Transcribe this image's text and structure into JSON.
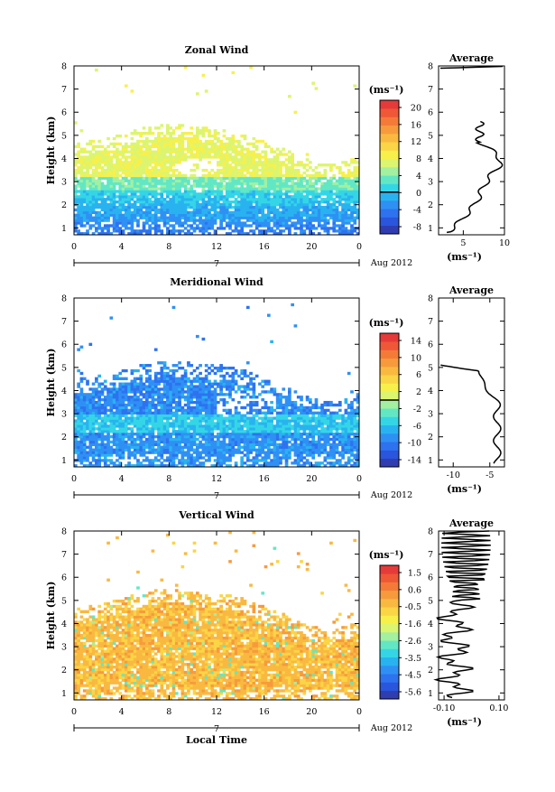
{
  "chart_data": [
    {
      "type": "heatmap",
      "title": "Zonal Wind",
      "ylabel": "Height (km)",
      "xlabel": "",
      "x_ticks": [
        "0",
        "4",
        "8",
        "12",
        "16",
        "20",
        "0"
      ],
      "y_ticks": [
        "1",
        "2",
        "3",
        "4",
        "5",
        "6",
        "7",
        "8"
      ],
      "xlim": [
        0,
        24
      ],
      "ylim": [
        0.7,
        8
      ],
      "day_label": "7",
      "date_label": "Aug 2012",
      "colorbar": {
        "unit": "(ms⁻¹)",
        "ticks": [
          "20",
          "16",
          "12",
          "8",
          "4",
          "0",
          "-4",
          "-8"
        ],
        "min": -10,
        "max": 22,
        "zero_line": 0
      },
      "average": {
        "title": "Average",
        "xlabel": "(ms⁻¹)",
        "x_ticks": [
          "5",
          "10"
        ],
        "y_ticks": [
          "1",
          "2",
          "3",
          "4",
          "5",
          "6",
          "7",
          "8"
        ],
        "xlim": [
          2,
          10
        ]
      }
    },
    {
      "type": "heatmap",
      "title": "Meridional Wind",
      "ylabel": "Height (km)",
      "xlabel": "",
      "x_ticks": [
        "0",
        "4",
        "8",
        "12",
        "16",
        "20",
        "0"
      ],
      "y_ticks": [
        "1",
        "2",
        "3",
        "4",
        "5",
        "6",
        "7",
        "8"
      ],
      "xlim": [
        0,
        24
      ],
      "ylim": [
        0.7,
        8
      ],
      "day_label": "7",
      "date_label": "Aug 2012",
      "colorbar": {
        "unit": "(ms⁻¹)",
        "ticks": [
          "14",
          "10",
          "6",
          "2",
          "-2",
          "-6",
          "-10",
          "-14"
        ],
        "min": -16,
        "max": 16,
        "zero_line": 0
      },
      "average": {
        "title": "Average",
        "xlabel": "(ms⁻¹)",
        "x_ticks": [
          "-10",
          "-5"
        ],
        "y_ticks": [
          "1",
          "2",
          "3",
          "4",
          "5",
          "6",
          "7",
          "8"
        ],
        "xlim": [
          -12,
          -3
        ]
      }
    },
    {
      "type": "heatmap",
      "title": "Vertical Wind",
      "ylabel": "Height (km)",
      "xlabel": "Local Time",
      "x_ticks": [
        "0",
        "4",
        "8",
        "12",
        "16",
        "20",
        "0"
      ],
      "y_ticks": [
        "1",
        "2",
        "3",
        "4",
        "5",
        "6",
        "7",
        "8"
      ],
      "xlim": [
        0,
        24
      ],
      "ylim": [
        0.7,
        8
      ],
      "day_label": "7",
      "date_label": "Aug 2012",
      "colorbar": {
        "unit": "(ms⁻¹)",
        "ticks": [
          "1.5",
          "0.6",
          "-0.5",
          "-1.6",
          "-2.6",
          "-3.5",
          "-4.5",
          "-5.6"
        ],
        "min": -6.1,
        "max": 2.0
      },
      "average": {
        "title": "Average",
        "xlabel": "(ms⁻¹)",
        "x_ticks": [
          "-0.10",
          "0.10"
        ],
        "y_ticks": [
          "1",
          "2",
          "3",
          "4",
          "5",
          "6",
          "7",
          "8"
        ],
        "xlim": [
          -0.12,
          0.12
        ]
      }
    }
  ]
}
